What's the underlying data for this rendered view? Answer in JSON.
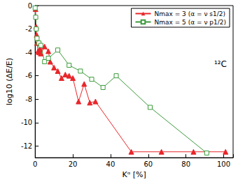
{
  "chart_data": {
    "type": "line",
    "x_label": "Kᵅ [%]",
    "y_label": "log10 (ΔE/E)",
    "annotation": "¹²C",
    "xlim": [
      0,
      105
    ],
    "xticks": [
      0,
      20,
      40,
      60,
      80,
      100
    ],
    "ylim": [
      -13,
      0
    ],
    "yticks": [
      -12,
      -10,
      -8,
      -6,
      -4,
      -2,
      0
    ],
    "grid": false,
    "legend": "upper right",
    "series": [
      {
        "name": "Nmax = 3 (α = ν s1/2)",
        "color": "#e8262a",
        "marker": "triangle",
        "x": [
          0.2,
          0.5,
          0.8,
          1,
          1.5,
          2,
          2.5,
          3,
          5,
          7,
          8,
          10,
          12,
          14,
          16,
          18,
          20,
          23,
          26,
          29,
          32,
          51,
          67,
          84,
          101
        ],
        "values": [
          -0.3,
          -1.8,
          -2.5,
          -3.2,
          -3.9,
          -4.0,
          -3.7,
          -4.1,
          -3.5,
          -3.9,
          -4.8,
          -5.3,
          -5.6,
          -6.2,
          -5.9,
          -6.0,
          -6.2,
          -8.2,
          -6.7,
          -8.3,
          -8.2,
          -12.5,
          -12.5,
          -12.5,
          -12.5
        ]
      },
      {
        "name": "Nmax = 5 (α = ν p1/2)",
        "color": "#3a9a3a",
        "marker": "open square",
        "x": [
          0,
          0.3,
          0.6,
          1,
          2,
          3,
          5,
          7,
          12,
          18,
          24,
          30,
          36,
          43,
          61,
          91
        ],
        "values": [
          -0.2,
          -1.0,
          -2.0,
          -2.8,
          -3.2,
          -3.4,
          -4.8,
          -4.5,
          -3.8,
          -5.1,
          -5.6,
          -6.3,
          -7.0,
          -6.0,
          -8.7,
          -12.6
        ]
      }
    ]
  }
}
